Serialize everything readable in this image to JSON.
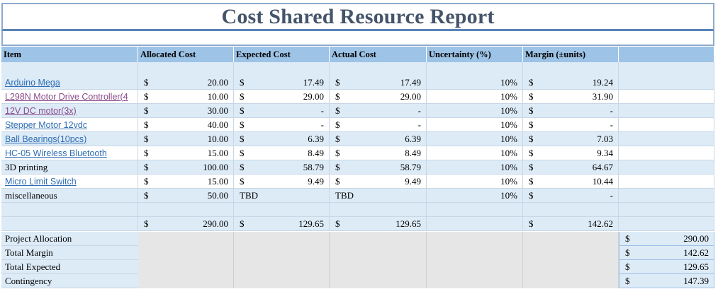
{
  "title": "Cost Shared Resource Report",
  "headers": [
    "Item",
    "Allocated Cost",
    "Expected Cost",
    "Actual Cost",
    "Uncertainty (%)",
    "Margin (±units)"
  ],
  "rows": [
    {
      "item": "Arduino Mega",
      "style": "link",
      "alloc": "20.00",
      "expected": "17.49",
      "actual": "17.49",
      "unc": "10%",
      "margin": "19.24"
    },
    {
      "item": "L298N Motor Drive Controller(4",
      "style": "visited",
      "alloc": "10.00",
      "expected": "29.00",
      "actual": "29.00",
      "unc": "10%",
      "margin": "31.90"
    },
    {
      "item": "12V DC motor(3x)",
      "style": "visited",
      "alloc": "30.00",
      "expected": "-",
      "actual": "-",
      "unc": "10%",
      "margin": "-"
    },
    {
      "item": "Stepper Motor 12vdc",
      "style": "link",
      "alloc": "40.00",
      "expected": "-",
      "actual": "-",
      "unc": "10%",
      "margin": "-"
    },
    {
      "item": "Ball Bearings(10pcs)",
      "style": "link",
      "alloc": "10.00",
      "expected": "6.39",
      "actual": "6.39",
      "unc": "10%",
      "margin": "7.03"
    },
    {
      "item": "HC-05 Wireless Bluetooth",
      "style": "link",
      "alloc": "15.00",
      "expected": "8.49",
      "actual": "8.49",
      "unc": "10%",
      "margin": "9.34"
    },
    {
      "item": "3D printing",
      "style": "plain",
      "alloc": "100.00",
      "expected": "58.79",
      "actual": "58.79",
      "unc": "10%",
      "margin": "64.67"
    },
    {
      "item": "Micro Limit Switch",
      "style": "link",
      "alloc": "15.00",
      "expected": "9.49",
      "actual": "9.49",
      "unc": "10%",
      "margin": "10.44"
    },
    {
      "item": "miscellaneous",
      "style": "plain",
      "alloc": "50.00",
      "expected": "TBD",
      "actual": "TBD",
      "unc": "10%",
      "margin": "-"
    }
  ],
  "totals": {
    "alloc": "290.00",
    "expected": "129.65",
    "actual": "129.65",
    "margin": "142.62"
  },
  "currency": "$",
  "summary": [
    {
      "label": "Project Allocation",
      "value": "290.00"
    },
    {
      "label": "Total Margin",
      "value": "142.62"
    },
    {
      "label": "Total Expected",
      "value": "129.65"
    },
    {
      "label": "Contingency",
      "value": "147.39"
    }
  ]
}
